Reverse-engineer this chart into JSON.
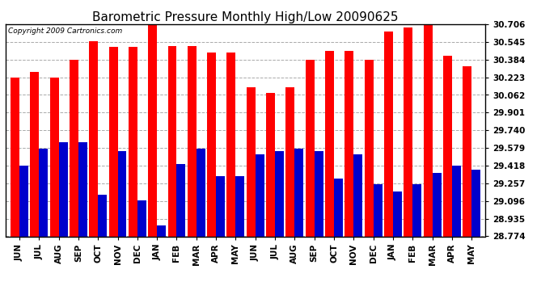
{
  "title": "Barometric Pressure Monthly High/Low 20090625",
  "copyright": "Copyright 2009 Cartronics.com",
  "categories": [
    "JUN",
    "JUL",
    "AUG",
    "SEP",
    "OCT",
    "NOV",
    "DEC",
    "JAN",
    "FEB",
    "MAR",
    "APR",
    "MAY",
    "JUN",
    "JUL",
    "AUG",
    "SEP",
    "OCT",
    "NOV",
    "DEC",
    "JAN",
    "FEB",
    "MAR",
    "APR",
    "MAY"
  ],
  "highs": [
    30.22,
    30.27,
    30.22,
    30.38,
    30.55,
    30.5,
    30.5,
    30.72,
    30.51,
    30.51,
    30.45,
    30.45,
    30.13,
    30.08,
    30.13,
    30.38,
    30.46,
    30.46,
    30.38,
    30.64,
    30.68,
    30.72,
    30.42,
    30.32
  ],
  "lows": [
    29.42,
    29.57,
    29.63,
    29.63,
    29.15,
    29.55,
    29.1,
    28.87,
    29.43,
    29.57,
    29.32,
    29.32,
    29.52,
    29.55,
    29.57,
    29.55,
    29.3,
    29.52,
    29.25,
    29.18,
    29.25,
    29.35,
    29.42,
    29.38
  ],
  "high_color": "#ff0000",
  "low_color": "#0000cc",
  "bg_color": "#ffffff",
  "grid_color": "#aaaaaa",
  "yticks": [
    28.774,
    28.935,
    29.096,
    29.257,
    29.418,
    29.579,
    29.74,
    29.901,
    30.062,
    30.223,
    30.384,
    30.545,
    30.706
  ],
  "ymin": 28.774,
  "ymax": 30.706,
  "title_fontsize": 11,
  "tick_fontsize": 7.5,
  "copyright_fontsize": 6.5
}
